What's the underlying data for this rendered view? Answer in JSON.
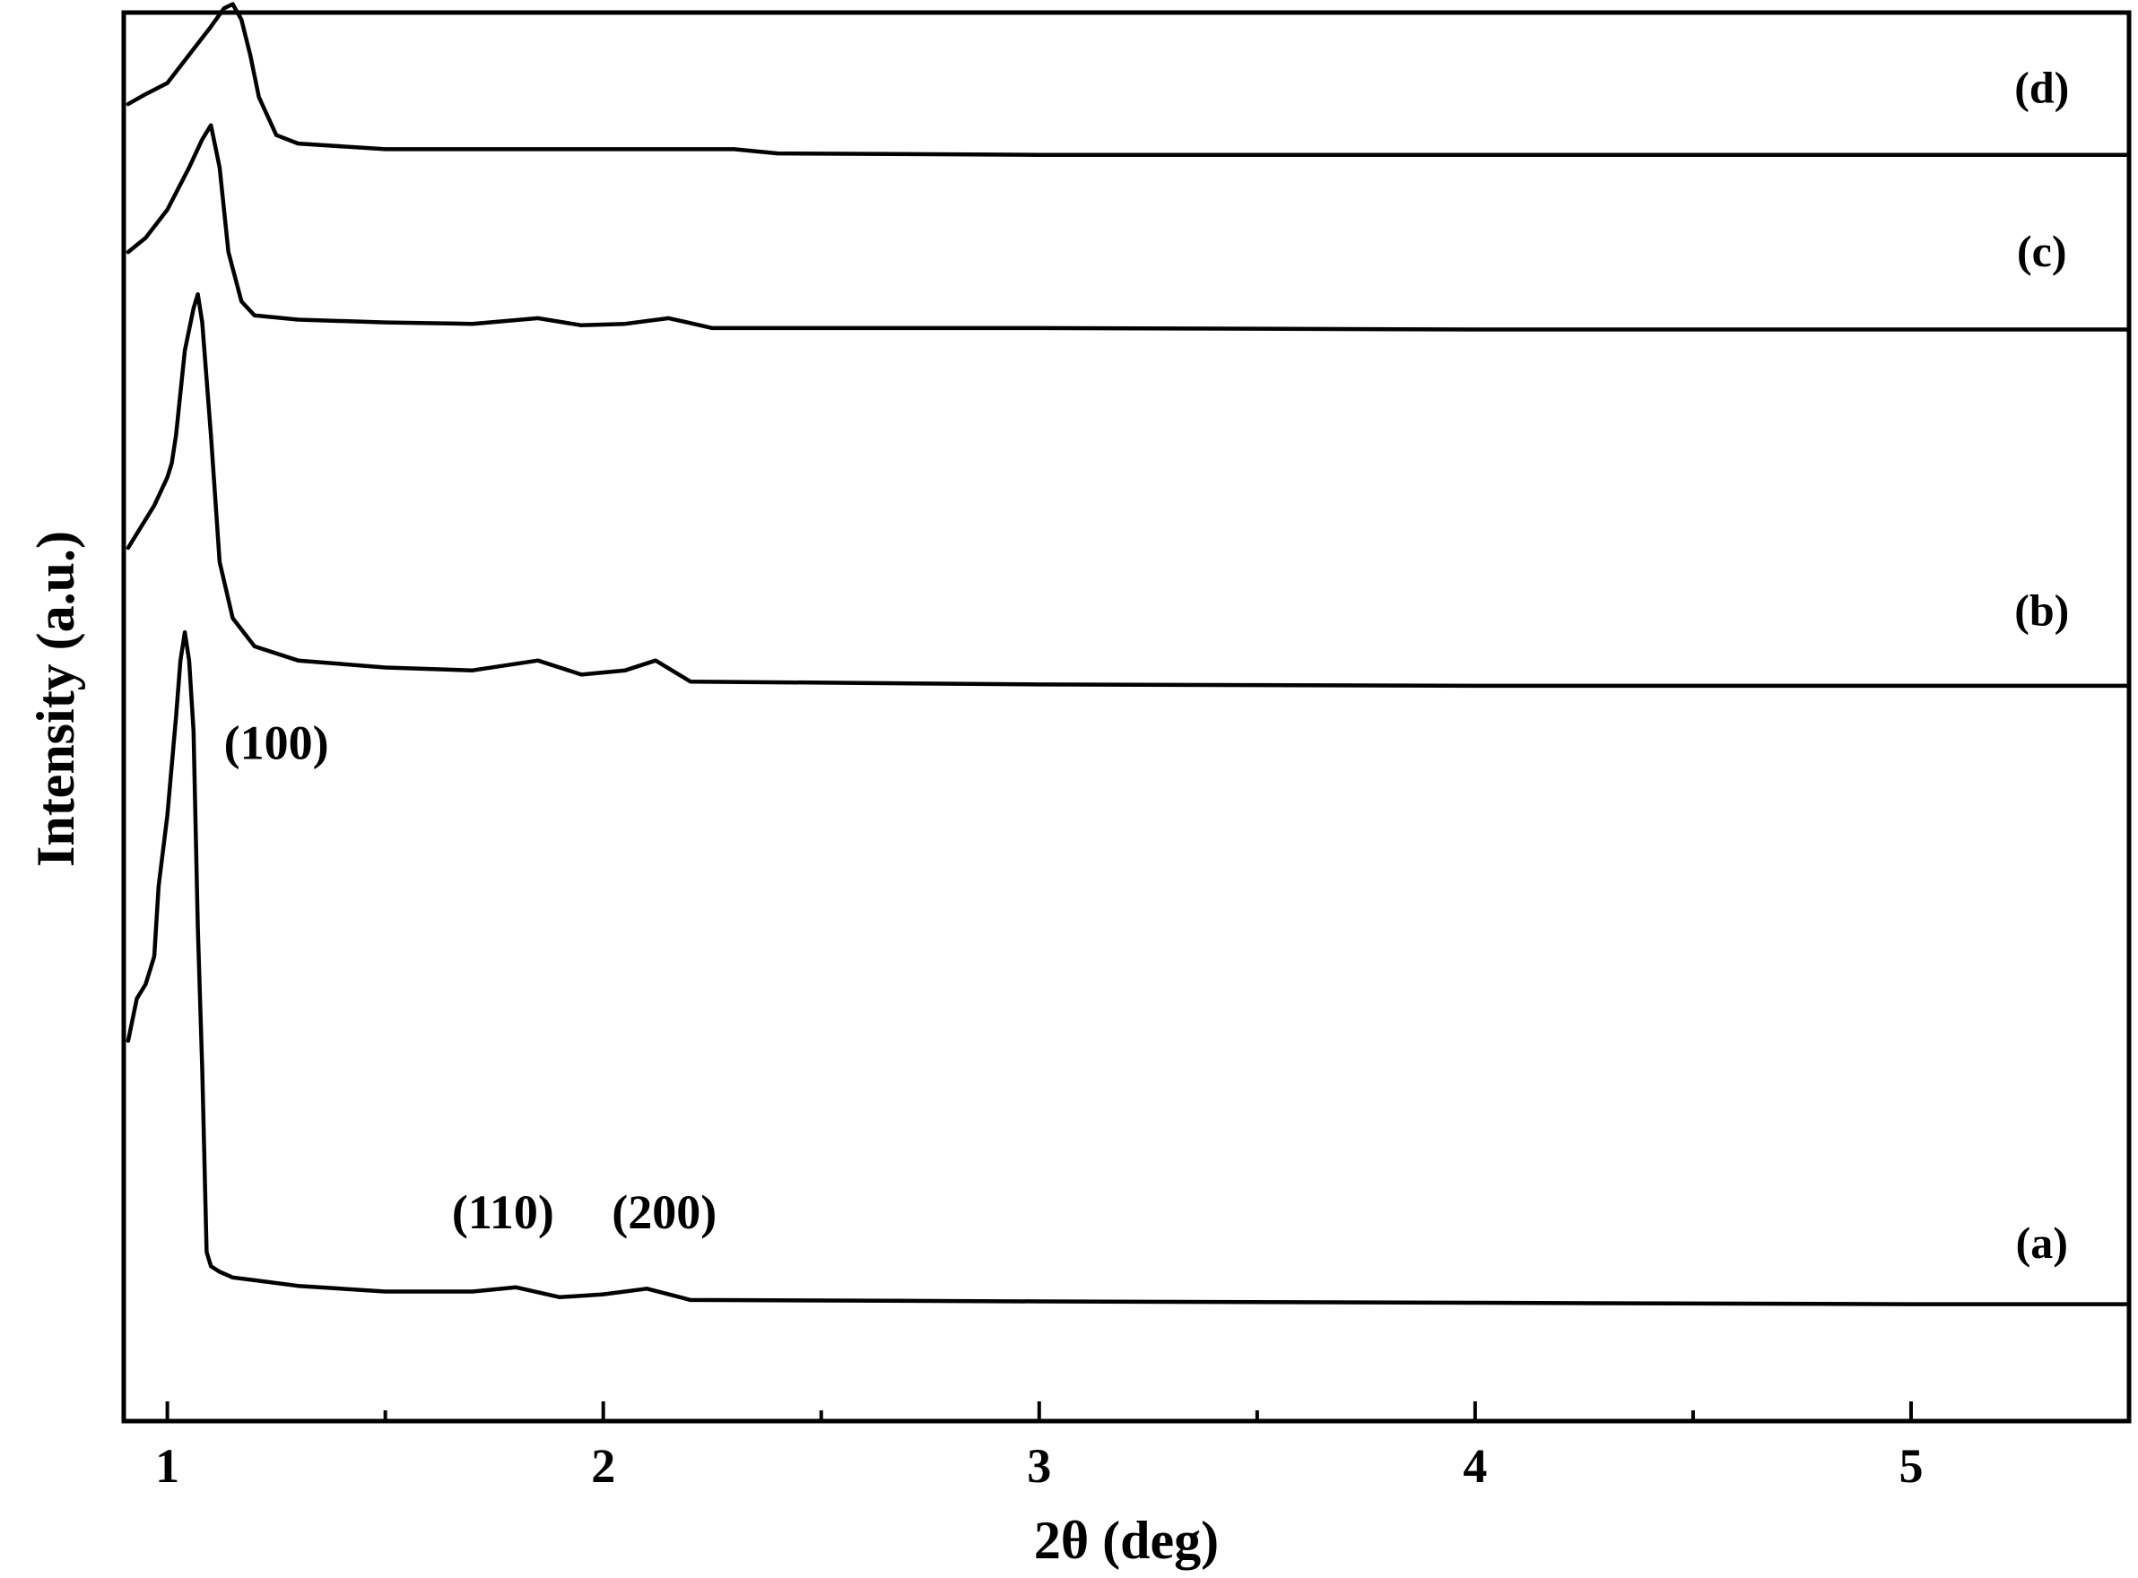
{
  "chart_data": {
    "type": "line",
    "title": "",
    "xlabel": "2θ (deg)",
    "ylabel": "Intensity (a.u.)",
    "xlim": [
      0.9,
      5.5
    ],
    "ylim": [
      0,
      100
    ],
    "xticks": [
      1,
      2,
      3,
      4,
      5
    ],
    "xtick_labels": [
      "1",
      "2",
      "3",
      "4",
      "5"
    ],
    "xminor_ticks": [
      1.5,
      2.5,
      3.5,
      4.5
    ],
    "y_ticks_shown": false,
    "grid": false,
    "series": [
      {
        "name": "(a)",
        "x": [
          0.91,
          0.93,
          0.95,
          0.96,
          0.97,
          0.98,
          1.0,
          1.02,
          1.03,
          1.04,
          1.05,
          1.06,
          1.07,
          1.08,
          1.09,
          1.1,
          1.12,
          1.15,
          1.2,
          1.3,
          1.5,
          1.7,
          1.8,
          1.9,
          2.0,
          2.1,
          2.15,
          2.2,
          3.0,
          4.0,
          5.0,
          5.5
        ],
        "y": [
          27,
          30,
          31,
          32,
          33,
          38,
          43,
          50,
          54,
          56,
          54,
          49,
          35,
          25,
          12,
          11,
          10.6,
          10.2,
          10.0,
          9.6,
          9.2,
          9.2,
          9.5,
          8.8,
          9.0,
          9.4,
          9.0,
          8.6,
          8.5,
          8.4,
          8.3,
          8.3
        ]
      },
      {
        "name": "(b)",
        "x": [
          0.91,
          0.94,
          0.97,
          1.0,
          1.01,
          1.02,
          1.04,
          1.06,
          1.07,
          1.08,
          1.1,
          1.12,
          1.15,
          1.2,
          1.3,
          1.5,
          1.7,
          1.85,
          1.95,
          2.05,
          2.12,
          2.2,
          3.0,
          4.0,
          5.0,
          5.5
        ],
        "y": [
          62,
          63.5,
          65,
          67,
          68,
          70,
          76,
          79,
          80,
          78,
          70,
          61,
          57,
          55,
          54,
          53.5,
          53.3,
          54,
          53,
          53.3,
          54,
          52.5,
          52.3,
          52.2,
          52.2,
          52.2
        ]
      },
      {
        "name": "(c)",
        "x": [
          0.91,
          0.95,
          1.0,
          1.05,
          1.08,
          1.1,
          1.12,
          1.14,
          1.17,
          1.2,
          1.3,
          1.5,
          1.7,
          1.85,
          1.95,
          2.05,
          2.15,
          2.25,
          3.0,
          4.0,
          5.0,
          5.5
        ],
        "y": [
          83,
          84,
          86,
          89,
          91,
          92,
          89,
          83,
          79.5,
          78.5,
          78.2,
          78.0,
          77.9,
          78.3,
          77.8,
          77.9,
          78.3,
          77.6,
          77.6,
          77.5,
          77.5,
          77.5
        ]
      },
      {
        "name": "(d)",
        "x": [
          0.91,
          0.95,
          1.0,
          1.05,
          1.1,
          1.13,
          1.15,
          1.17,
          1.19,
          1.21,
          1.25,
          1.3,
          1.5,
          2.0,
          2.3,
          2.4,
          3.0,
          4.0,
          5.0,
          5.5
        ],
        "y": [
          93.5,
          94.2,
          95,
          97,
          99,
          100.3,
          100.6,
          99.5,
          97,
          94,
          91.3,
          90.7,
          90.3,
          90.3,
          90.3,
          90.0,
          89.9,
          89.9,
          89.9,
          89.9
        ]
      }
    ],
    "series_labels": [
      {
        "text": "(a)",
        "x": 5.3,
        "y": 11.6
      },
      {
        "text": "(b)",
        "x": 5.3,
        "y": 56.5
      },
      {
        "text": "(c)",
        "x": 5.3,
        "y": 82
      },
      {
        "text": "(d)",
        "x": 5.3,
        "y": 93.6
      }
    ],
    "annotations": [
      {
        "text": "(100)",
        "x": 1.25,
        "y": 47
      },
      {
        "text": "(110)",
        "x": 1.77,
        "y": 13.7
      },
      {
        "text": "(200)",
        "x": 2.14,
        "y": 13.7
      }
    ],
    "line_color": "#000000"
  }
}
